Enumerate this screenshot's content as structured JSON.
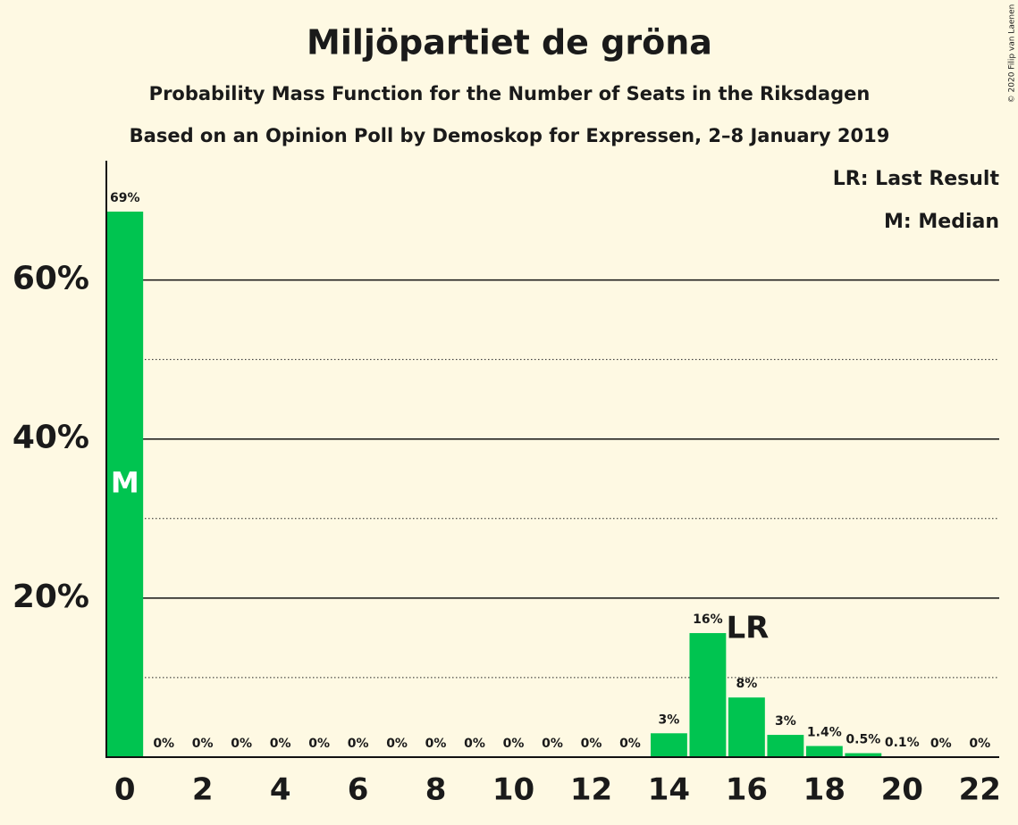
{
  "chart_data": {
    "type": "bar",
    "title": "Miljöpartiet de gröna",
    "subtitle": "Probability Mass Function for the Number of Seats in the Riksdagen",
    "subtitle2": "Based on an Opinion Poll by Demoskop for Expressen, 2–8 January 2019",
    "copyright": "© 2020 Filip van Laenen",
    "legend": [
      "LR: Last Result",
      "M: Median"
    ],
    "legend_position": "upper right",
    "x": [
      0,
      1,
      2,
      3,
      4,
      5,
      6,
      7,
      8,
      9,
      10,
      11,
      12,
      13,
      14,
      15,
      16,
      17,
      18,
      19,
      20,
      21,
      22
    ],
    "values": [
      68.6,
      0,
      0,
      0,
      0,
      0,
      0,
      0,
      0,
      0,
      0,
      0,
      0,
      0,
      3.0,
      15.6,
      7.5,
      2.8,
      1.4,
      0.5,
      0.1,
      0,
      0
    ],
    "value_labels": [
      "69%",
      "0%",
      "0%",
      "0%",
      "0%",
      "0%",
      "0%",
      "0%",
      "0%",
      "0%",
      "0%",
      "0%",
      "0%",
      "0%",
      "3%",
      "16%",
      "8%",
      "3%",
      "1.4%",
      "0.5%",
      "0.1%",
      "0%",
      "0%"
    ],
    "color": "#00c450",
    "xlim": [
      -0.5,
      22.5
    ],
    "xticks": [
      0,
      2,
      4,
      6,
      8,
      10,
      12,
      14,
      16,
      18,
      20,
      22
    ],
    "ylim": [
      0,
      75
    ],
    "yticks": [
      {
        "value": 20,
        "label": "20%"
      },
      {
        "value": 40,
        "label": "40%"
      },
      {
        "value": 60,
        "label": "60%"
      }
    ],
    "minor_yticks": [
      10,
      30,
      50
    ],
    "grid": true,
    "annotations": [
      {
        "text": "M",
        "x": 0
      },
      {
        "text": "LR",
        "x": 16
      }
    ]
  }
}
